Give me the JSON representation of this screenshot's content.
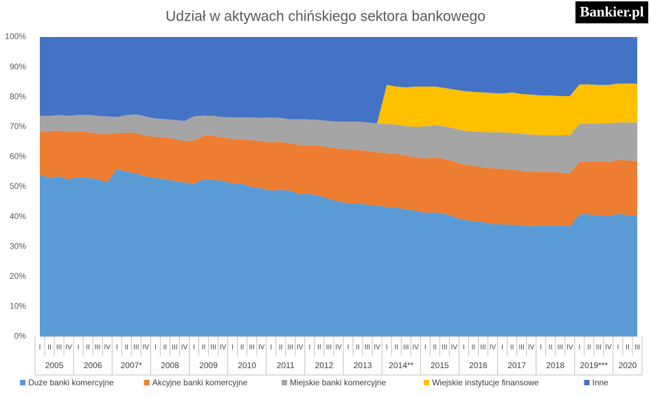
{
  "logo": "Bankier.pl",
  "chart_data": {
    "type": "stacked_area",
    "title": "Udział w aktywach chińskiego sektora bankowego",
    "categories": [
      "I",
      "II",
      "III",
      "IV",
      "I",
      "II",
      "III",
      "IV",
      "I",
      "II",
      "III",
      "IV",
      "I",
      "II",
      "III",
      "IV",
      "I",
      "II",
      "III",
      "IV",
      "I",
      "II",
      "III",
      "IV",
      "I",
      "II",
      "III",
      "IV",
      "I",
      "II",
      "III",
      "IV",
      "I",
      "II",
      "III",
      "IV",
      "I",
      "II",
      "III",
      "IV",
      "I",
      "II",
      "III",
      "IV",
      "I",
      "II",
      "III",
      "IV",
      "I",
      "II",
      "III",
      "IV",
      "I",
      "II",
      "III",
      "IV",
      "I",
      "II",
      "III",
      "IV",
      "I",
      "II",
      "III"
    ],
    "category_groups": [
      "2005",
      "2006",
      "2007*",
      "2008",
      "2009",
      "2010",
      "2011",
      "2012",
      "2013",
      "2014**",
      "2015",
      "2016",
      "2017",
      "2018",
      "2019***",
      "2020"
    ],
    "ylim": [
      0,
      100
    ],
    "yticks": [
      {
        "value": 0,
        "label": "0%"
      },
      {
        "value": 10,
        "label": "10%"
      },
      {
        "value": 20,
        "label": "20%"
      },
      {
        "value": 30,
        "label": "30%"
      },
      {
        "value": 40,
        "label": "40%"
      },
      {
        "value": 50,
        "label": "50%"
      },
      {
        "value": 60,
        "label": "60%"
      },
      {
        "value": 70,
        "label": "70%"
      },
      {
        "value": 80,
        "label": "80%"
      },
      {
        "value": 90,
        "label": "90%"
      },
      {
        "value": 100,
        "label": "100%"
      }
    ],
    "grid": true,
    "legend": "bottom",
    "series": [
      {
        "name": "Duże banki komercyjne",
        "color": "#5b9bd5",
        "values": [
          54,
          53,
          53.5,
          52.5,
          53.3,
          53,
          52.5,
          51.5,
          56,
          55,
          54.5,
          53.5,
          53,
          52.5,
          52,
          51.5,
          51,
          52.5,
          52.3,
          52,
          51,
          51,
          50,
          49.5,
          48.7,
          49,
          48.7,
          47.5,
          47.7,
          47,
          46,
          45,
          44.5,
          44.5,
          44,
          43.7,
          43.3,
          43,
          42.5,
          42,
          41.3,
          41.5,
          41,
          40,
          39,
          38.5,
          38.2,
          37.5,
          37.5,
          37.3,
          37.2,
          36.8,
          37,
          37,
          37,
          36.8,
          40.8,
          40.8,
          40.5,
          40.2,
          41,
          40.6,
          40.5
        ]
      },
      {
        "name": "Akcyjne banki komercyjne",
        "color": "#ed7d31",
        "values": [
          14.5,
          15.6,
          15.3,
          15.7,
          15.2,
          15.3,
          15.3,
          16,
          12,
          13,
          13.5,
          13.5,
          13.7,
          14,
          14,
          13.8,
          14.5,
          14.5,
          14.7,
          14.5,
          15,
          15,
          15.5,
          15.8,
          16.1,
          16,
          15.8,
          16.5,
          16.1,
          16.8,
          17.2,
          17.8,
          18,
          17.8,
          18,
          17.8,
          18,
          18,
          18,
          17.8,
          18.2,
          18.3,
          18.3,
          18.5,
          18.5,
          18.5,
          18.3,
          18.7,
          18.5,
          18.5,
          18.1,
          18.2,
          18,
          18,
          17.8,
          17.7,
          17.5,
          17.6,
          18,
          18,
          18,
          18.2,
          18.1
        ]
      },
      {
        "name": "Miejskie banki komercyjne",
        "color": "#a5a5a5",
        "values": [
          5.2,
          5.1,
          5.2,
          5.5,
          5.5,
          5.7,
          5.9,
          6,
          5.3,
          6,
          6.2,
          6.5,
          6.1,
          6.1,
          6.3,
          6.7,
          8,
          6.8,
          6.7,
          6.8,
          7.2,
          7.2,
          7.7,
          7.7,
          8.4,
          8,
          8,
          8.6,
          8.7,
          8.5,
          8.8,
          9,
          9.3,
          9.5,
          9.5,
          9.7,
          9.7,
          9.8,
          9.8,
          10.2,
          10.7,
          10.8,
          10.9,
          11,
          11.3,
          11.5,
          11.8,
          12,
          12.2,
          12.2,
          12.4,
          12.5,
          12.3,
          12.3,
          12.4,
          12.7,
          12.7,
          12.8,
          12.7,
          13.1,
          12.5,
          12.7,
          12.9
        ]
      },
      {
        "name": "Wiejskie instytucje finansowe",
        "color": "#ffc000",
        "values": [
          0,
          0,
          0,
          0,
          0,
          0,
          0,
          0,
          0,
          0,
          0,
          0,
          0,
          0,
          0,
          0,
          0,
          0,
          0,
          0,
          0,
          0,
          0,
          0,
          0,
          0,
          0,
          0,
          0,
          0,
          0,
          0,
          0,
          0,
          0,
          0,
          13,
          12.7,
          12.9,
          13.5,
          13.3,
          12.9,
          12.8,
          13,
          13.2,
          13.2,
          13.2,
          13.1,
          13,
          13.5,
          13.3,
          13.3,
          13.2,
          13.2,
          13.1,
          13.1,
          13.2,
          13,
          12.8,
          12.7,
          13,
          13,
          13
        ]
      },
      {
        "name": "Inne",
        "color": "#4472c4",
        "values": [
          26.3,
          26.3,
          26,
          26.3,
          26,
          26,
          26.3,
          26.5,
          26.7,
          26,
          25.8,
          26.5,
          27.2,
          27.4,
          27.7,
          28,
          26.5,
          26.2,
          26.3,
          26.7,
          26.8,
          26.8,
          26.8,
          27,
          26.8,
          27,
          27.5,
          27.4,
          27.5,
          27.7,
          28,
          28.2,
          28.2,
          28.2,
          28.5,
          28.8,
          16,
          16.5,
          16.8,
          16.5,
          16.5,
          16.5,
          17,
          17.5,
          18,
          18.3,
          18.5,
          18.7,
          18.8,
          18.5,
          19,
          19.2,
          19.5,
          19.5,
          19.7,
          19.7,
          15.8,
          15.8,
          16,
          16,
          15.5,
          15.5,
          15.5
        ]
      }
    ]
  }
}
